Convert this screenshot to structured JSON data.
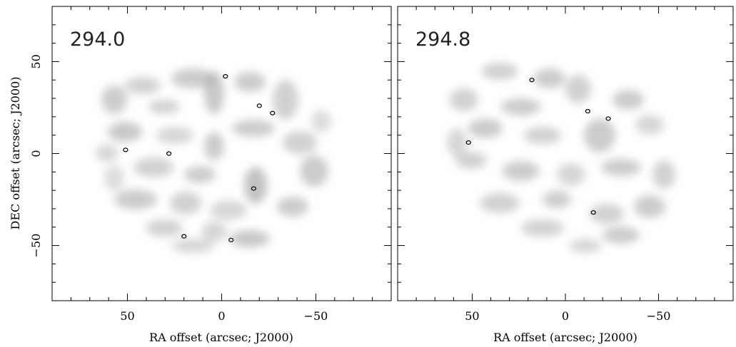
{
  "chart_data": [
    {
      "type": "heatmap",
      "panel_label": "294.0",
      "xlabel": "RA offset (arcsec; J2000)",
      "ylabel": "DEC offset (arcsec; J2000)",
      "xlim": [
        90,
        -90
      ],
      "ylim": [
        -80,
        80
      ],
      "x_ticks": [
        50,
        0,
        -50
      ],
      "x_tick_labels": [
        "50",
        "0",
        "−50"
      ],
      "y_ticks": [
        50,
        0,
        -50
      ],
      "y_tick_labels": [
        "50",
        "0",
        "−50"
      ],
      "contours": [
        {
          "x": -2,
          "y": 42
        },
        {
          "x": -20,
          "y": 26
        },
        {
          "x": -27,
          "y": 22
        },
        {
          "x": 51,
          "y": 2
        },
        {
          "x": 28,
          "y": 0
        },
        {
          "x": -17,
          "y": -19
        },
        {
          "x": 20,
          "y": -45
        },
        {
          "x": -5,
          "y": -47
        }
      ]
    },
    {
      "type": "heatmap",
      "panel_label": "294.8",
      "xlabel": "RA offset (arcsec; J2000)",
      "ylabel": "",
      "xlim": [
        90,
        -90
      ],
      "ylim": [
        -80,
        80
      ],
      "x_ticks": [
        50,
        0,
        -50
      ],
      "x_tick_labels": [
        "50",
        "0",
        "−50"
      ],
      "contours": [
        {
          "x": -12,
          "y": 23
        },
        {
          "x": -23,
          "y": 19
        },
        {
          "x": 52,
          "y": 6
        },
        {
          "x": 18,
          "y": 40
        },
        {
          "x": -15,
          "y": -32
        }
      ]
    }
  ]
}
